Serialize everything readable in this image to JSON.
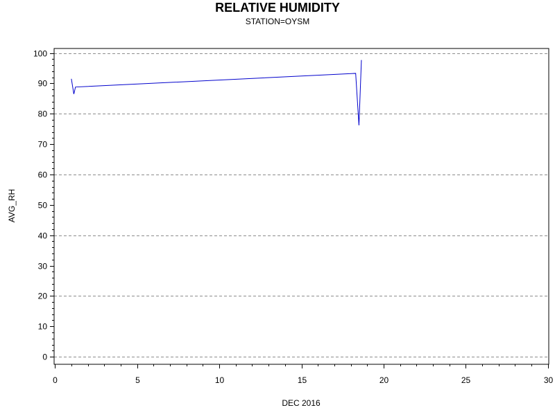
{
  "chart_data": {
    "type": "line",
    "title": "RELATIVE HUMIDITY",
    "subtitle": "STATION=OYSM",
    "xlabel": "DEC 2016",
    "ylabel": "AVG_RH",
    "xlim": [
      -0.05,
      30.05
    ],
    "ylim": [
      -2.5,
      101.5
    ],
    "x_ticks": [
      0,
      5,
      10,
      15,
      20,
      25,
      30
    ],
    "x_tick_labels": [
      "0",
      "5",
      "10",
      "15",
      "20",
      "25",
      "30"
    ],
    "y_ticks": [
      0,
      10,
      20,
      30,
      40,
      50,
      60,
      70,
      80,
      90,
      100
    ],
    "y_tick_labels": [
      "0",
      "10",
      "20",
      "30",
      "40",
      "50",
      "60",
      "70",
      "80",
      "90",
      "100"
    ],
    "grid": {
      "horizontal": true,
      "horizontal_at": [
        0,
        20,
        40,
        60,
        80,
        100
      ],
      "style": "dashed"
    },
    "series": [
      {
        "color": "#0000cc",
        "x": [
          1.0,
          1.15,
          1.25,
          18.3,
          18.5,
          18.65
        ],
        "y": [
          91.5,
          86.5,
          88.8,
          93.3,
          76.2,
          97.7
        ]
      }
    ]
  }
}
